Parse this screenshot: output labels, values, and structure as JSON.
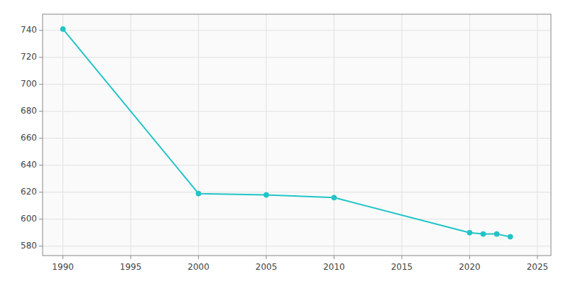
{
  "chart_data": {
    "type": "line",
    "x": [
      1990,
      2000,
      2005,
      2010,
      2020,
      2021,
      2022,
      2023
    ],
    "values": [
      741,
      619,
      618,
      616,
      590,
      589,
      589,
      587
    ],
    "color": "#20c4c8",
    "marker": "circle",
    "xlim": [
      1988.5,
      2026
    ],
    "ylim": [
      573,
      752
    ],
    "xticks": [
      1990,
      1995,
      2000,
      2005,
      2010,
      2015,
      2020,
      2025
    ],
    "yticks": [
      580,
      600,
      620,
      640,
      660,
      680,
      700,
      720,
      740
    ],
    "grid": true
  }
}
